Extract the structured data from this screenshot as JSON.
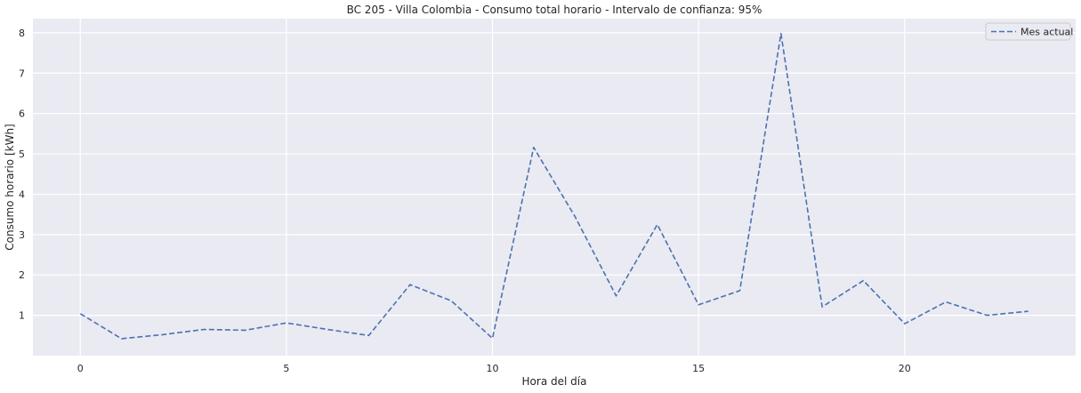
{
  "chart_data": {
    "type": "line",
    "title": "BC 205 - Villa Colombia - Consumo total horario - Intervalo de confianza: 95%",
    "xlabel": "Hora del día",
    "ylabel": "Consumo horario [kWh]",
    "xlim": [
      -1.15,
      24.15
    ],
    "ylim": [
      0.0,
      8.35
    ],
    "xticks": [
      0,
      5,
      10,
      15,
      20
    ],
    "yticks": [
      1,
      2,
      3,
      4,
      5,
      6,
      7,
      8
    ],
    "grid": true,
    "legend_position": "top-right",
    "series": [
      {
        "name": "Mes actual",
        "color": "#4C72B0",
        "line_style": "dashed",
        "x": [
          0,
          1,
          2,
          3,
          4,
          5,
          6,
          7,
          8,
          9,
          10,
          11,
          12,
          13,
          14,
          15,
          16,
          17,
          18,
          19,
          20,
          21,
          22,
          23
        ],
        "y": [
          1.04,
          0.42,
          0.52,
          0.65,
          0.63,
          0.81,
          0.65,
          0.5,
          1.76,
          1.36,
          0.43,
          5.16,
          3.45,
          1.48,
          3.25,
          1.26,
          1.61,
          7.98,
          1.21,
          1.86,
          0.79,
          1.33,
          1.0,
          1.1
        ]
      }
    ]
  }
}
